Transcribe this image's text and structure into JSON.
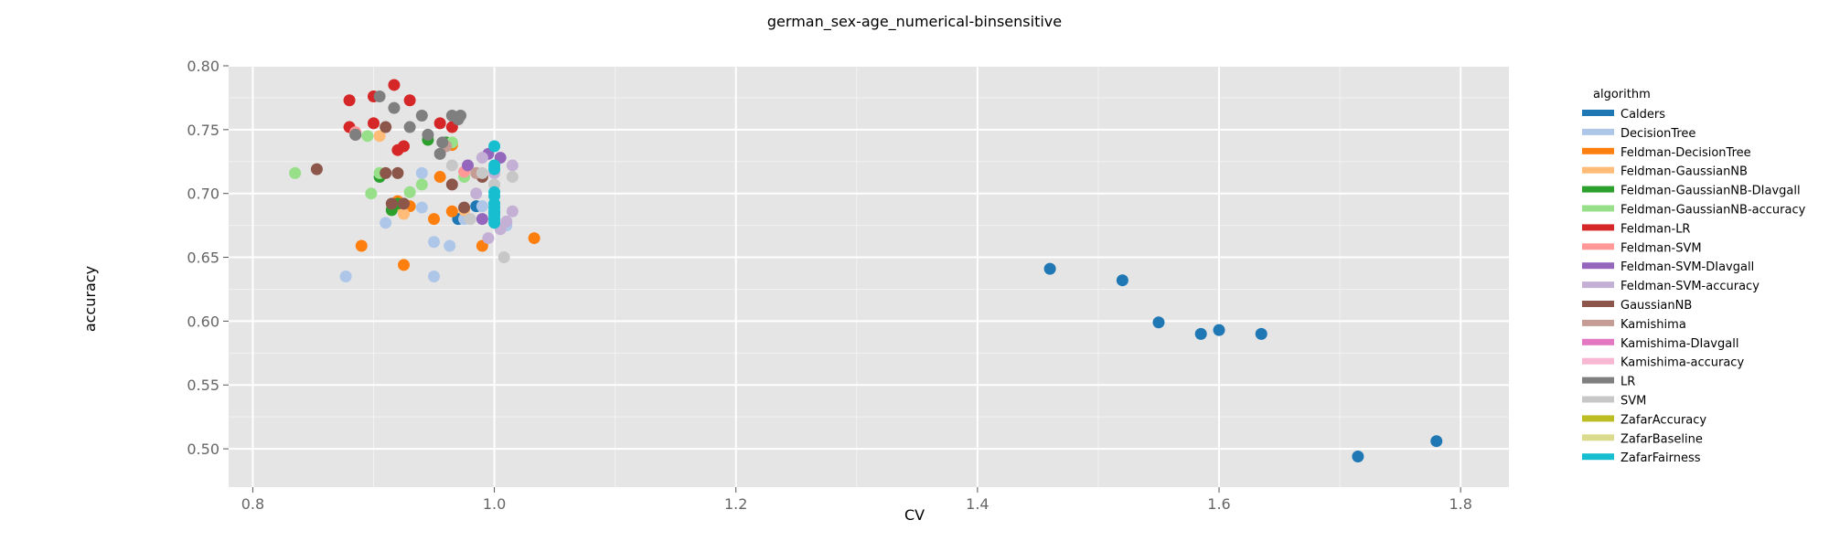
{
  "chart_data": {
    "type": "scatter",
    "title": "german_sex-age_numerical-binsensitive",
    "xlabel": "CV",
    "ylabel": "accuracy",
    "xlim": [
      0.78,
      1.84
    ],
    "ylim": [
      0.47,
      0.8
    ],
    "xticks": [
      "0.8",
      "1.0",
      "1.2",
      "1.4",
      "1.6",
      "1.8"
    ],
    "yticks": [
      "0.50",
      "0.55",
      "0.60",
      "0.65",
      "0.70",
      "0.75",
      "0.80"
    ],
    "grid": true,
    "legend_title": "algorithm",
    "legend_position": "right",
    "series": [
      {
        "name": "Calders",
        "color": "#1f77b4",
        "points": [
          [
            1.46,
            0.641
          ],
          [
            1.52,
            0.632
          ],
          [
            1.55,
            0.599
          ],
          [
            1.585,
            0.59
          ],
          [
            1.6,
            0.593
          ],
          [
            1.635,
            0.59
          ],
          [
            1.715,
            0.494
          ],
          [
            1.78,
            0.506
          ],
          [
            0.97,
            0.68
          ],
          [
            0.985,
            0.69
          ]
        ]
      },
      {
        "name": "DecisionTree",
        "color": "#aec7e8",
        "points": [
          [
            0.877,
            0.635
          ],
          [
            0.95,
            0.635
          ],
          [
            0.91,
            0.677
          ],
          [
            0.95,
            0.662
          ],
          [
            0.963,
            0.659
          ],
          [
            0.94,
            0.689
          ],
          [
            0.94,
            0.716
          ],
          [
            0.99,
            0.69
          ],
          [
            1.01,
            0.675
          ],
          [
            0.975,
            0.68
          ]
        ]
      },
      {
        "name": "Feldman-DecisionTree",
        "color": "#ff7f0e",
        "points": [
          [
            0.89,
            0.659
          ],
          [
            0.925,
            0.644
          ],
          [
            0.95,
            0.68
          ],
          [
            0.965,
            0.686
          ],
          [
            0.99,
            0.659
          ],
          [
            1.033,
            0.665
          ],
          [
            0.955,
            0.713
          ],
          [
            0.92,
            0.694
          ],
          [
            0.965,
            0.738
          ],
          [
            0.93,
            0.69
          ]
        ]
      },
      {
        "name": "Feldman-GaussianNB",
        "color": "#ffbb78",
        "points": [
          [
            0.92,
            0.69
          ],
          [
            0.925,
            0.684
          ],
          [
            0.905,
            0.745
          ],
          [
            0.96,
            0.738
          ],
          [
            0.975,
            0.687
          ]
        ]
      },
      {
        "name": "Feldman-GaussianNB-DIavgall",
        "color": "#2ca02c",
        "points": [
          [
            0.915,
            0.687
          ],
          [
            0.92,
            0.692
          ],
          [
            0.945,
            0.742
          ],
          [
            0.905,
            0.713
          ],
          [
            0.96,
            0.74
          ]
        ]
      },
      {
        "name": "Feldman-GaussianNB-accuracy",
        "color": "#98df8a",
        "points": [
          [
            0.835,
            0.716
          ],
          [
            0.895,
            0.745
          ],
          [
            0.905,
            0.716
          ],
          [
            0.93,
            0.701
          ],
          [
            0.94,
            0.707
          ],
          [
            0.965,
            0.74
          ],
          [
            0.975,
            0.713
          ],
          [
            0.898,
            0.7
          ]
        ]
      },
      {
        "name": "Feldman-LR",
        "color": "#d62728",
        "points": [
          [
            0.88,
            0.773
          ],
          [
            0.88,
            0.752
          ],
          [
            0.9,
            0.755
          ],
          [
            0.917,
            0.785
          ],
          [
            0.93,
            0.773
          ],
          [
            0.92,
            0.734
          ],
          [
            0.925,
            0.737
          ],
          [
            0.955,
            0.755
          ],
          [
            0.965,
            0.752
          ],
          [
            0.9,
            0.776
          ]
        ]
      },
      {
        "name": "Feldman-SVM",
        "color": "#ff9896",
        "points": [
          [
            0.885,
            0.748
          ],
          [
            0.975,
            0.717
          ]
        ]
      },
      {
        "name": "Feldman-SVM-DIavgall",
        "color": "#9467bd",
        "points": [
          [
            0.978,
            0.722
          ],
          [
            0.995,
            0.731
          ],
          [
            1.005,
            0.728
          ],
          [
            0.99,
            0.68
          ],
          [
            1.0,
            0.685
          ]
        ]
      },
      {
        "name": "Feldman-SVM-accuracy",
        "color": "#c5b0d5",
        "points": [
          [
            0.99,
            0.728
          ],
          [
            1.015,
            0.722
          ],
          [
            1.015,
            0.686
          ],
          [
            1.005,
            0.672
          ],
          [
            0.995,
            0.665
          ],
          [
            1.01,
            0.678
          ],
          [
            0.985,
            0.7
          ],
          [
            1.0,
            0.716
          ]
        ]
      },
      {
        "name": "GaussianNB",
        "color": "#8c564b",
        "points": [
          [
            0.853,
            0.719
          ],
          [
            0.885,
            0.746
          ],
          [
            0.91,
            0.752
          ],
          [
            0.91,
            0.716
          ],
          [
            0.92,
            0.716
          ],
          [
            0.915,
            0.692
          ],
          [
            0.925,
            0.692
          ],
          [
            0.965,
            0.707
          ],
          [
            0.975,
            0.689
          ],
          [
            0.99,
            0.713
          ]
        ]
      },
      {
        "name": "Kamishima",
        "color": "#c49c94",
        "points": [
          [
            0.985,
            0.716
          ],
          [
            0.96,
            0.737
          ]
        ]
      },
      {
        "name": "Kamishima-DIavgall",
        "color": "#e377c2",
        "points": []
      },
      {
        "name": "Kamishima-accuracy",
        "color": "#f7b6d2",
        "points": []
      },
      {
        "name": "LR",
        "color": "#7f7f7f",
        "points": [
          [
            0.905,
            0.776
          ],
          [
            0.917,
            0.767
          ],
          [
            0.93,
            0.752
          ],
          [
            0.94,
            0.761
          ],
          [
            0.945,
            0.746
          ],
          [
            0.955,
            0.731
          ],
          [
            0.957,
            0.74
          ],
          [
            0.965,
            0.761
          ],
          [
            0.97,
            0.758
          ],
          [
            0.972,
            0.761
          ],
          [
            0.885,
            0.746
          ]
        ]
      },
      {
        "name": "SVM",
        "color": "#c7c7c7",
        "points": [
          [
            1.008,
            0.65
          ],
          [
            1.015,
            0.713
          ],
          [
            0.965,
            0.722
          ],
          [
            0.99,
            0.716
          ],
          [
            0.98,
            0.68
          ],
          [
            1.0,
            0.707
          ]
        ]
      },
      {
        "name": "ZafarAccuracy",
        "color": "#bcbd22",
        "points": []
      },
      {
        "name": "ZafarBaseline",
        "color": "#dbdb8d",
        "points": []
      },
      {
        "name": "ZafarFairness",
        "color": "#17becf",
        "points": [
          [
            1.0,
            0.737
          ],
          [
            1.0,
            0.722
          ],
          [
            1.0,
            0.719
          ],
          [
            1.0,
            0.701
          ],
          [
            1.0,
            0.698
          ],
          [
            1.0,
            0.692
          ],
          [
            1.0,
            0.689
          ],
          [
            1.0,
            0.686
          ],
          [
            1.0,
            0.683
          ],
          [
            1.0,
            0.68
          ],
          [
            1.0,
            0.677
          ]
        ]
      }
    ]
  }
}
